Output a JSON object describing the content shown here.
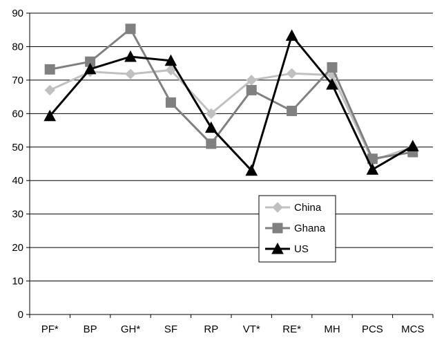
{
  "chart_data": {
    "type": "line",
    "title": "",
    "xlabel": "",
    "ylabel": "",
    "categories": [
      "PF*",
      "BP",
      "GH*",
      "SF",
      "RP",
      "VT*",
      "RE*",
      "MH",
      "PCS",
      "MCS"
    ],
    "ylim": [
      0,
      90
    ],
    "yticks": [
      0,
      10,
      20,
      30,
      40,
      50,
      60,
      70,
      80,
      90
    ],
    "grid": true,
    "legend_position": "lower-right",
    "series": [
      {
        "name": "China",
        "color": "#c0c0c0",
        "marker": "diamond",
        "values": [
          67,
          72.5,
          71.8,
          73,
          60,
          70,
          72,
          71.5,
          46,
          50
        ]
      },
      {
        "name": "Ghana",
        "color": "#808080",
        "marker": "square",
        "values": [
          73.2,
          75.5,
          85.3,
          63.3,
          51,
          67,
          60.8,
          73.8,
          46.5,
          48.5
        ]
      },
      {
        "name": "US",
        "color": "#000000",
        "marker": "triangle",
        "values": [
          59.3,
          73.3,
          77,
          75.8,
          55.8,
          43,
          83.3,
          68.7,
          43.3,
          50.3
        ]
      }
    ]
  }
}
